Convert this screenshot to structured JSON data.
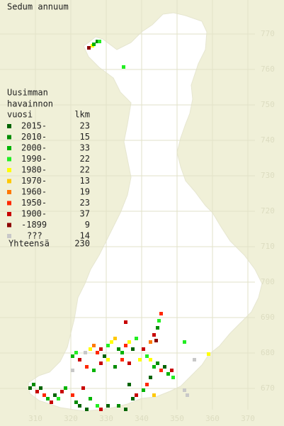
{
  "title": "Sedum annuum",
  "legend": {
    "heading": [
      "Uusimman",
      "havainnon",
      "vuosi"
    ],
    "count_heading": "lkm",
    "items": [
      {
        "label": "2015-",
        "count": "23",
        "color": "#006400"
      },
      {
        "label": "2010-",
        "count": "15",
        "color": "#008c00"
      },
      {
        "label": "2000-",
        "count": "33",
        "color": "#00b400"
      },
      {
        "label": "1990-",
        "count": "22",
        "color": "#22ee22"
      },
      {
        "label": "1980-",
        "count": "22",
        "color": "#ffff00"
      },
      {
        "label": "1970-",
        "count": "13",
        "color": "#ffc800"
      },
      {
        "label": "1960-",
        "count": "19",
        "color": "#ff7800"
      },
      {
        "label": "1950-",
        "count": "23",
        "color": "#ff2800"
      },
      {
        "label": "1900-",
        "count": "37",
        "color": "#c80000"
      },
      {
        "label": "-1899",
        "count": "9",
        "color": "#8c0000"
      },
      {
        "label": "???",
        "count": "14",
        "color": "#c8c8c8"
      }
    ],
    "total_label": "Yhteensä",
    "total": "230"
  },
  "x_ticks": [
    310,
    320,
    330,
    340,
    350,
    360,
    370
  ],
  "y_ticks": [
    670,
    680,
    690,
    700,
    710,
    720,
    730,
    740,
    750,
    760,
    770
  ]
}
